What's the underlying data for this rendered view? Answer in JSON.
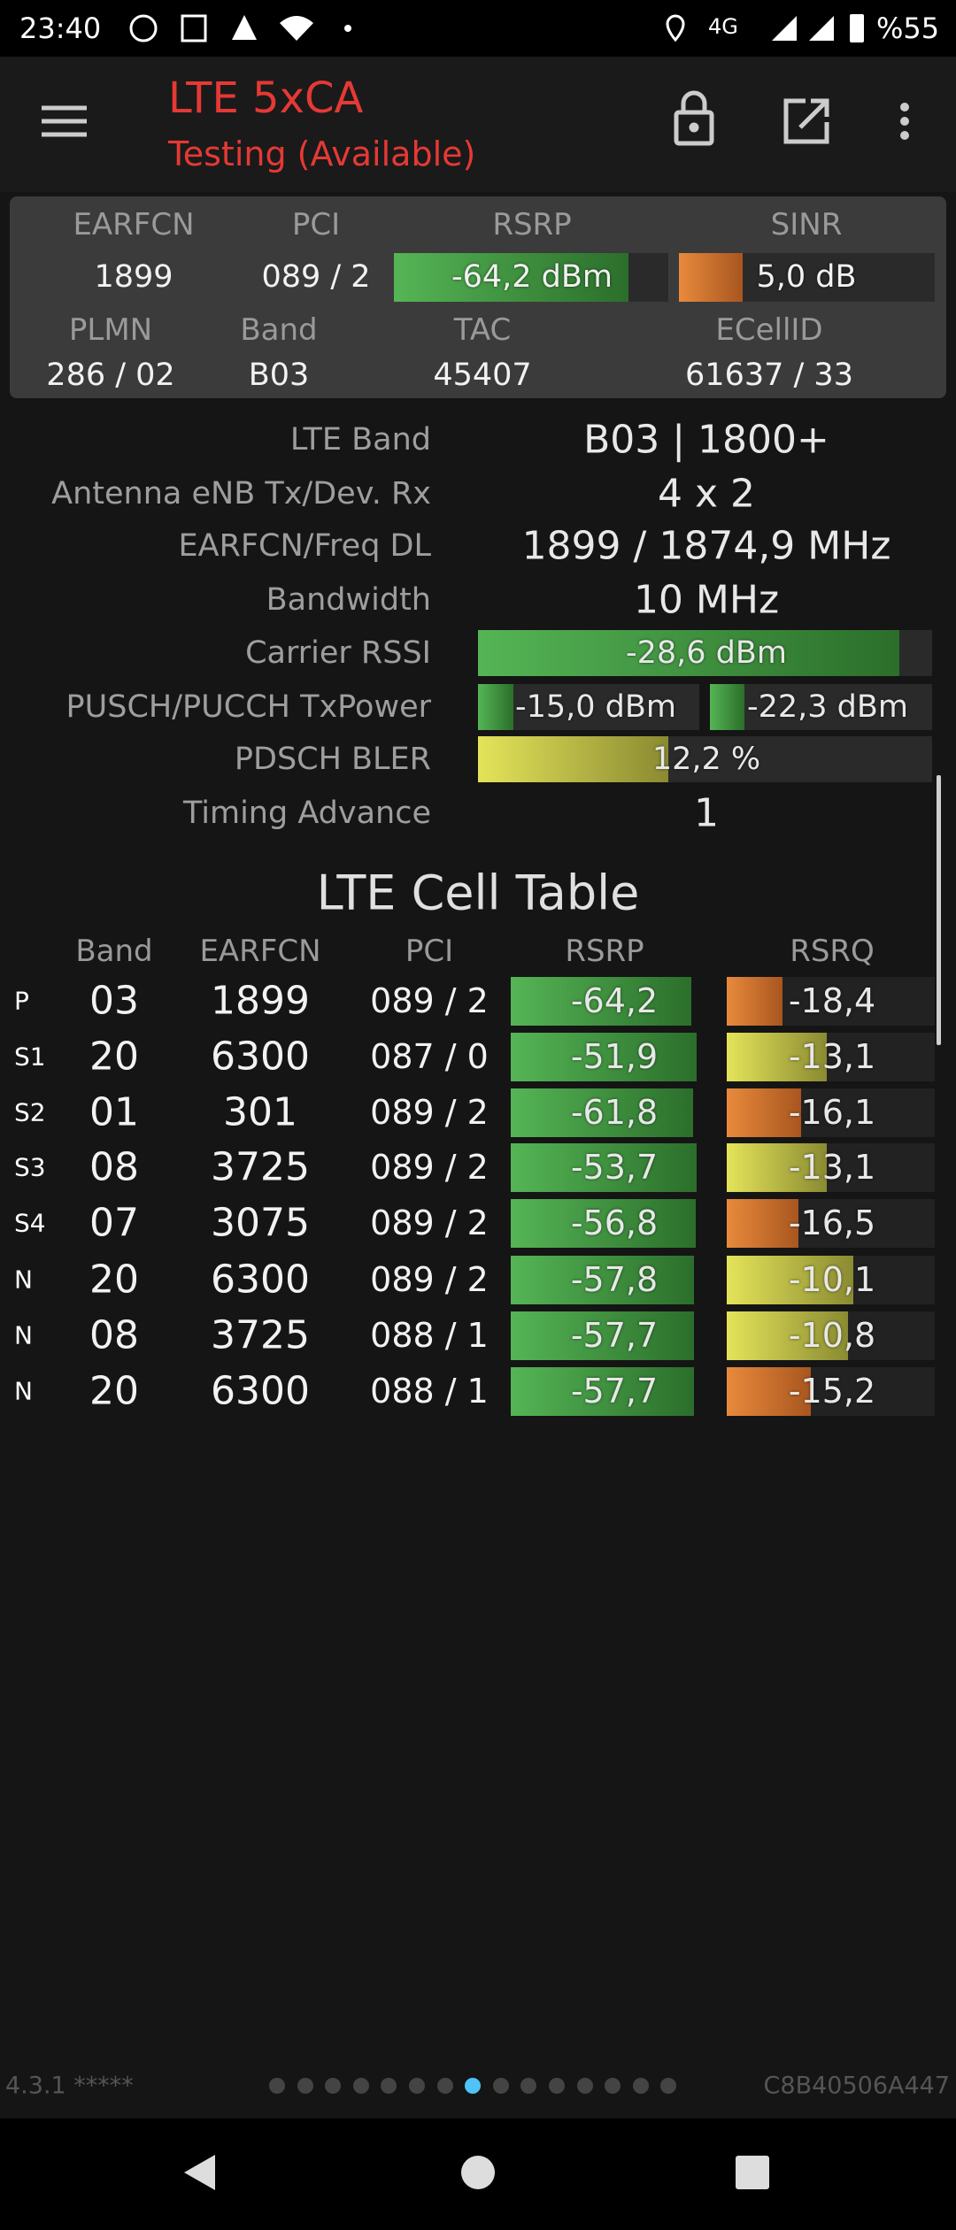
{
  "status_bar": {
    "time": "23:40",
    "network": "4G",
    "battery": "%55"
  },
  "app_bar": {
    "title": "LTE 5xCA",
    "subtitle": "Testing (Available)"
  },
  "summary": {
    "rows": [
      [
        "EARFCN",
        "PCI",
        "RSRP",
        "SINR"
      ],
      [
        "1899",
        "089 / 2",
        "-64,2 dBm",
        "5,0 dB"
      ],
      [
        "PLMN",
        "Band",
        "TAC",
        "ECellID"
      ],
      [
        "286 / 02",
        "B03",
        "45407",
        "61637 / 33"
      ]
    ]
  },
  "details": [
    {
      "label": "LTE Band",
      "value": "B03 | 1800+"
    },
    {
      "label": "Antenna eNB Tx/Dev. Rx",
      "value": "4 x 2"
    },
    {
      "label": "EARFCN/Freq DL",
      "value": "1899 / 1874,9 MHz"
    },
    {
      "label": "Bandwidth",
      "value": "10 MHz"
    },
    {
      "label": "Carrier RSSI",
      "value": "-28,6 dBm"
    },
    {
      "label": "PUSCH/PUCCH TxPower",
      "values": [
        "-15,0 dBm",
        "-22,3 dBm"
      ]
    },
    {
      "label": "PDSCH BLER",
      "value": "12,2 %"
    },
    {
      "label": "Timing Advance",
      "value": "1"
    }
  ],
  "cell_table": {
    "title": "LTE Cell Table",
    "headers": [
      "Band",
      "EARFCN",
      "PCI",
      "RSRP",
      "RSRQ"
    ],
    "rows": [
      [
        "P",
        "03",
        "1899",
        "089 / 2",
        "-64,2",
        "-18,4"
      ],
      [
        "S1",
        "20",
        "6300",
        "087 / 0",
        "-51,9",
        "-13,1"
      ],
      [
        "S2",
        "01",
        "301",
        "089 / 2",
        "-61,8",
        "-16,1"
      ],
      [
        "S3",
        "08",
        "3725",
        "089 / 2",
        "-53,7",
        "-13,1"
      ],
      [
        "S4",
        "07",
        "3075",
        "089 / 2",
        "-56,8",
        "-16,5"
      ],
      [
        "N",
        "20",
        "6300",
        "089 / 2",
        "-57,8",
        "-10,1"
      ],
      [
        "N",
        "08",
        "3725",
        "088 / 1",
        "-57,7",
        "-10,8"
      ],
      [
        "N",
        "20",
        "6300",
        "088 / 1",
        "-57,7",
        "-15,2"
      ]
    ]
  },
  "footer": {
    "version": "4.3.1 *****",
    "device_id": "C8B40506A447"
  }
}
